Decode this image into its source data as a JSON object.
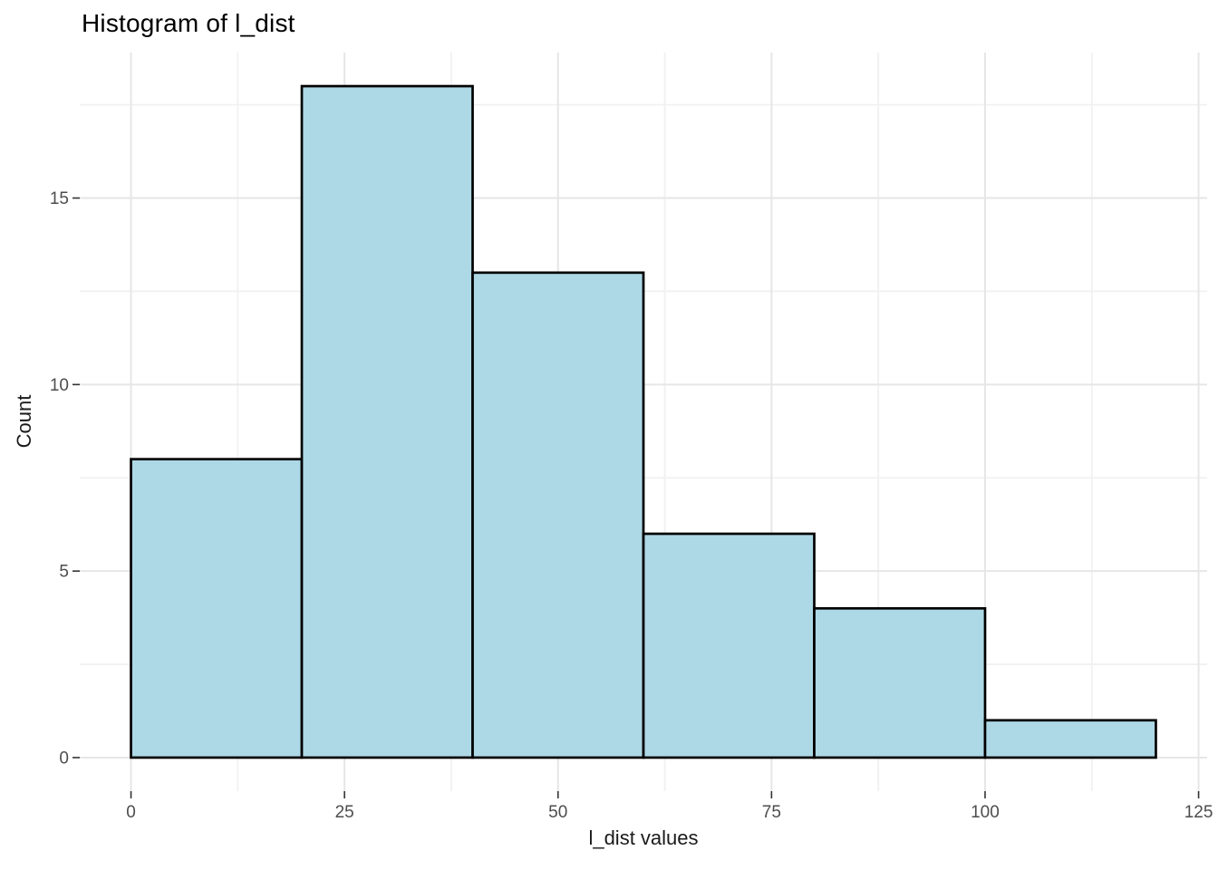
{
  "header": {
    "title": "Histogram of l_dist"
  },
  "chart_data": {
    "type": "bar",
    "subtype": "histogram",
    "title": "Histogram of l_dist",
    "xlabel": "l_dist values",
    "ylabel": "Count",
    "bin_edges": [
      0,
      20,
      40,
      60,
      80,
      100,
      120
    ],
    "counts": [
      8,
      18,
      13,
      6,
      4,
      1
    ],
    "x_ticks": [
      0,
      25,
      50,
      75,
      100,
      125
    ],
    "x_minor_ticks": [
      12.5,
      37.5,
      62.5,
      87.5,
      112.5
    ],
    "y_ticks": [
      0,
      5,
      10,
      15
    ],
    "y_minor_ticks": [
      2.5,
      7.5,
      12.5,
      17.5
    ],
    "xlim": [
      -6,
      126
    ],
    "ylim": [
      -0.9,
      18.9
    ],
    "grid": "major+minor",
    "legend": "none",
    "colors": {
      "bar_fill": "#ADD8E6",
      "bar_stroke": "#000000",
      "grid_major": "#E6E6E6",
      "grid_minor": "#F1F1F1",
      "tick_mark": "#333333",
      "tick_label": "#4D4D4D",
      "axis_title": "#1A1A1A",
      "title": "#000000",
      "background": "#FFFFFF"
    }
  }
}
